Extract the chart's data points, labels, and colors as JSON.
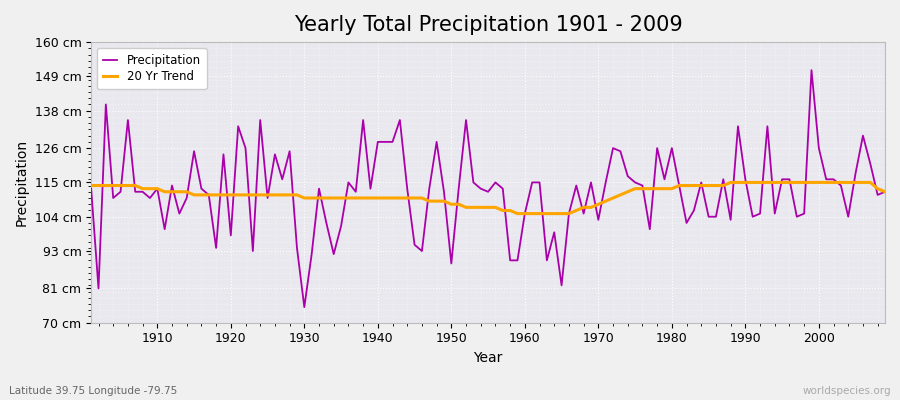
{
  "title": "Yearly Total Precipitation 1901 - 2009",
  "xlabel": "Year",
  "ylabel": "Precipitation",
  "subtitle": "Latitude 39.75 Longitude -79.75",
  "watermark": "worldspecies.org",
  "years": [
    1901,
    1902,
    1903,
    1904,
    1905,
    1906,
    1907,
    1908,
    1909,
    1910,
    1911,
    1912,
    1913,
    1914,
    1915,
    1916,
    1917,
    1918,
    1919,
    1920,
    1921,
    1922,
    1923,
    1924,
    1925,
    1926,
    1927,
    1928,
    1929,
    1930,
    1931,
    1932,
    1933,
    1934,
    1935,
    1936,
    1937,
    1938,
    1939,
    1940,
    1941,
    1942,
    1943,
    1944,
    1945,
    1946,
    1947,
    1948,
    1949,
    1950,
    1951,
    1952,
    1953,
    1954,
    1955,
    1956,
    1957,
    1958,
    1959,
    1960,
    1961,
    1962,
    1963,
    1964,
    1965,
    1966,
    1967,
    1968,
    1969,
    1970,
    1971,
    1972,
    1973,
    1974,
    1975,
    1976,
    1977,
    1978,
    1979,
    1980,
    1981,
    1982,
    1983,
    1984,
    1985,
    1986,
    1987,
    1988,
    1989,
    1990,
    1991,
    1992,
    1993,
    1994,
    1995,
    1996,
    1997,
    1998,
    1999,
    2000,
    2001,
    2002,
    2003,
    2004,
    2005,
    2006,
    2007,
    2008,
    2009
  ],
  "precip": [
    113,
    81,
    140,
    110,
    112,
    135,
    112,
    112,
    110,
    113,
    100,
    114,
    105,
    110,
    125,
    113,
    111,
    94,
    124,
    98,
    133,
    126,
    93,
    135,
    110,
    124,
    116,
    125,
    94,
    75,
    92,
    113,
    102,
    92,
    101,
    115,
    112,
    135,
    113,
    128,
    128,
    128,
    135,
    113,
    95,
    93,
    113,
    128,
    112,
    89,
    113,
    135,
    115,
    113,
    112,
    115,
    113,
    90,
    90,
    105,
    115,
    115,
    90,
    99,
    82,
    105,
    114,
    105,
    115,
    103,
    115,
    126,
    125,
    117,
    115,
    114,
    100,
    126,
    116,
    126,
    114,
    102,
    106,
    115,
    104,
    104,
    116,
    103,
    133,
    116,
    104,
    105,
    133,
    105,
    116,
    116,
    104,
    105,
    151,
    126,
    116,
    116,
    114,
    104,
    118,
    130,
    121,
    111,
    112
  ],
  "trend": [
    114,
    114,
    114,
    114,
    114,
    114,
    114,
    113,
    113,
    113,
    112,
    112,
    112,
    112,
    111,
    111,
    111,
    111,
    111,
    111,
    111,
    111,
    111,
    111,
    111,
    111,
    111,
    111,
    111,
    110,
    110,
    110,
    110,
    110,
    110,
    110,
    110,
    110,
    110,
    110,
    110,
    110,
    110,
    110,
    110,
    110,
    109,
    109,
    109,
    108,
    108,
    107,
    107,
    107,
    107,
    107,
    106,
    106,
    105,
    105,
    105,
    105,
    105,
    105,
    105,
    105,
    106,
    107,
    107,
    108,
    109,
    110,
    111,
    112,
    113,
    113,
    113,
    113,
    113,
    113,
    114,
    114,
    114,
    114,
    114,
    114,
    114,
    115,
    115,
    115,
    115,
    115,
    115,
    115,
    115,
    115,
    115,
    115,
    115,
    115,
    115,
    115,
    115,
    115,
    115,
    115,
    115,
    113,
    112
  ],
  "precip_color": "#aa00aa",
  "trend_color": "#FFA500",
  "bg_color": "#f0f0f0",
  "plot_bg": "#e8e8ee",
  "fig_bg": "#f0f0f0",
  "ylim": [
    70,
    160
  ],
  "yticks": [
    70,
    81,
    93,
    104,
    115,
    126,
    138,
    149,
    160
  ],
  "ytick_labels": [
    "70 cm",
    "81 cm",
    "93 cm",
    "104 cm",
    "115 cm",
    "126 cm",
    "138 cm",
    "149 cm",
    "160 cm"
  ],
  "xticks": [
    1910,
    1920,
    1930,
    1940,
    1950,
    1960,
    1970,
    1980,
    1990,
    2000
  ],
  "title_fontsize": 15,
  "label_fontsize": 10,
  "tick_fontsize": 9
}
